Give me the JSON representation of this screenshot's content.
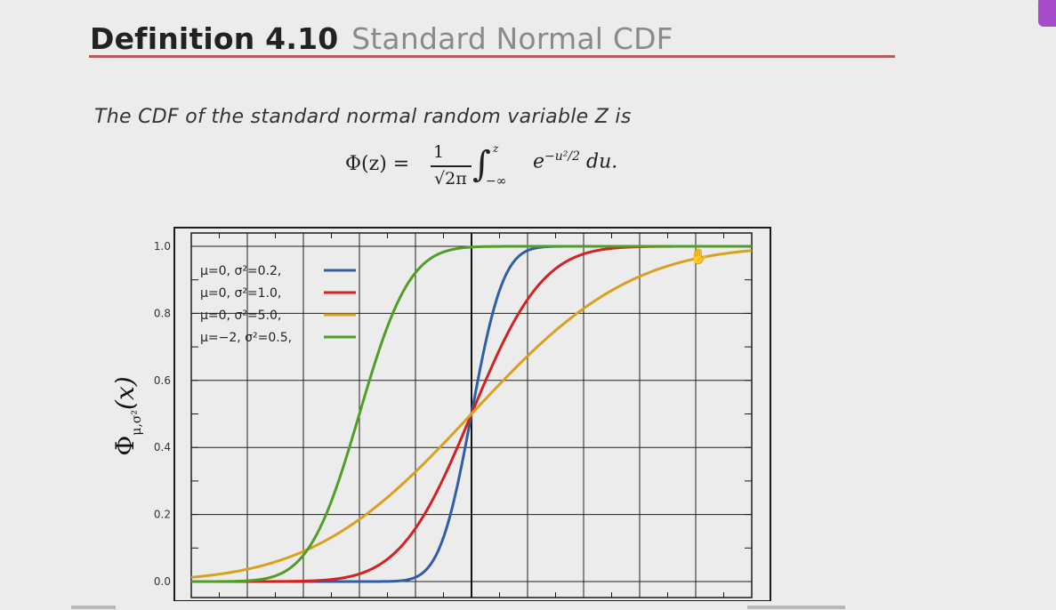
{
  "slide": {
    "title_number": "Definition 4.10",
    "title_name": "Standard Normal CDF",
    "intro": "The CDF of the standard normal random variable Z is",
    "formula": {
      "lhs": "Φ(z) =",
      "frac_num": "1",
      "frac_den": "√2π",
      "integral": "∫",
      "upper": "z",
      "lower": "−∞",
      "integrand_base": "e",
      "integrand_exp": "−u²/2",
      "integrand_tail": " du."
    }
  },
  "colors": {
    "accent_rule": "#b8585a",
    "blue": "#2f5ea8",
    "red": "#d42121",
    "gold": "#d9a01e",
    "green": "#4f9e26"
  },
  "icons": [
    "hand-cursor-icon"
  ],
  "chart_data": {
    "type": "line",
    "title": "",
    "xlabel": "",
    "ylabel": "Φ_{μ,σ²}(x)",
    "ylabel_parts": {
      "base": "Φ",
      "sub": "μ,σ²",
      "arg": "(x)"
    },
    "xlim": [
      -5,
      5
    ],
    "ylim": [
      0,
      1
    ],
    "yticks": [
      "0.0",
      "0.2",
      "0.4",
      "0.6",
      "0.8",
      "1.0"
    ],
    "ytick_values": [
      0,
      0.2,
      0.4,
      0.6,
      0.8,
      1.0
    ],
    "grid": true,
    "legend_position": "top-left",
    "series": [
      {
        "name": "μ=0,   σ²=0.2,",
        "mu": 0,
        "variance": 0.2,
        "color": "#2f5ea8"
      },
      {
        "name": "μ=0,   σ²=1.0,",
        "mu": 0,
        "variance": 1.0,
        "color": "#d42121"
      },
      {
        "name": "μ=0,   σ²=5.0,",
        "mu": 0,
        "variance": 5.0,
        "color": "#d9a01e"
      },
      {
        "name": "μ=−2, σ²=0.5,",
        "mu": -2,
        "variance": 0.5,
        "color": "#4f9e26"
      }
    ]
  }
}
